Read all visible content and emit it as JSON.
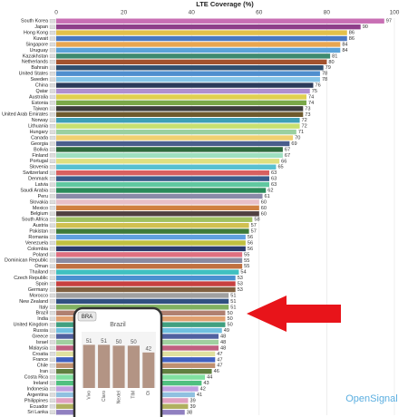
{
  "chart_data": [
    {
      "type": "barh",
      "title": "LTE Coverage (%)",
      "categories": [
        "South Korea",
        "Japan",
        "Hong Kong",
        "Kuwait",
        "Singapore",
        "Uruguay",
        "Kazakhstan",
        "Netherlands",
        "Bahrain",
        "United States",
        "Sweden",
        "China",
        "Qatar",
        "Australia",
        "Estonia",
        "Taiwan",
        "United Arab Emirates",
        "Norway",
        "Lithuania",
        "Hungary",
        "Canada",
        "Georgia",
        "Bolivia",
        "Finland",
        "Portugal",
        "Slovenia",
        "Switzerland",
        "Denmark",
        "Latvia",
        "Saudi Arabia",
        "Peru",
        "Slovakia",
        "Mexico",
        "Belgium",
        "South Africa",
        "Austria",
        "Pakistan",
        "Romania",
        "Venezuela",
        "Colombia",
        "Poland",
        "Dominican Republic",
        "Oman",
        "Thailand",
        "Czech Republic",
        "Spain",
        "Germany",
        "Morocco",
        "New Zealand",
        "Italy",
        "Brazil",
        "India",
        "United Kingdom",
        "Russia",
        "Greece",
        "Israel",
        "Malaysia",
        "Croatia",
        "France",
        "Chile",
        "Iran",
        "Costa Rica",
        "Ireland",
        "Indonesia",
        "Argentina",
        "Philippines",
        "Ecuador",
        "Sri Lanka"
      ],
      "values": [
        97,
        90,
        86,
        86,
        84,
        84,
        81,
        80,
        79,
        78,
        78,
        76,
        75,
        74,
        74,
        73,
        73,
        72,
        72,
        71,
        70,
        69,
        67,
        67,
        66,
        65,
        63,
        63,
        63,
        62,
        61,
        60,
        60,
        60,
        58,
        57,
        57,
        56,
        56,
        56,
        55,
        55,
        55,
        54,
        53,
        53,
        53,
        51,
        51,
        51,
        50,
        50,
        50,
        49,
        48,
        48,
        48,
        47,
        47,
        47,
        46,
        44,
        43,
        42,
        41,
        39,
        39,
        38
      ],
      "colors": [
        "#c86fb4",
        "#8e3f8a",
        "#e3c04a",
        "#4a78c2",
        "#e8a650",
        "#5ba3d9",
        "#3e8a6f",
        "#a2522e",
        "#2f4f6f",
        "#4f8fcf",
        "#86c5e8",
        "#2b3a5a",
        "#b08fd0",
        "#e0d050",
        "#7aa848",
        "#3c3c3c",
        "#6e5a2e",
        "#3ea0b8",
        "#c8e070",
        "#9ad0a0",
        "#f0d070",
        "#4a5e8c",
        "#2e6a3c",
        "#9ee0c0",
        "#e0e080",
        "#58c0d0",
        "#d86060",
        "#3a5c8a",
        "#60c8a0",
        "#2a8a5a",
        "#8a8aa8",
        "#e8c0c8",
        "#d08040",
        "#504040",
        "#a0c060",
        "#d0c050",
        "#3e7a3a",
        "#60a0e0",
        "#c0c040",
        "#2c3c6c",
        "#e07080",
        "#8a8aa0",
        "#c07040",
        "#40c0c0",
        "#4a90d0",
        "#c84040",
        "#806040",
        "#a0a0a0",
        "#305080",
        "#80b060",
        "#b08070",
        "#e0a070",
        "#40a080",
        "#70c0e0",
        "#5060a0",
        "#a0d0a0",
        "#c06080",
        "#e0e0a0",
        "#4060c0",
        "#c09070",
        "#608040",
        "#80e0a0",
        "#50c080",
        "#c0a0e0",
        "#90c0e0",
        "#e0a0c0",
        "#b0b060",
        "#9080c0"
      ],
      "xlim": [
        0,
        100
      ],
      "xticks": [
        0,
        20,
        40,
        60,
        80,
        100
      ],
      "grid": true
    },
    {
      "type": "bar",
      "title": "Brazil",
      "badge": "BRA",
      "categories": [
        "Vivo",
        "Claro",
        "Nextel",
        "TIM",
        "Oi"
      ],
      "values": [
        51,
        51,
        50,
        50,
        42
      ],
      "color": "#b39484",
      "ylim": [
        0,
        60
      ]
    }
  ],
  "logo": "OpenSignal"
}
